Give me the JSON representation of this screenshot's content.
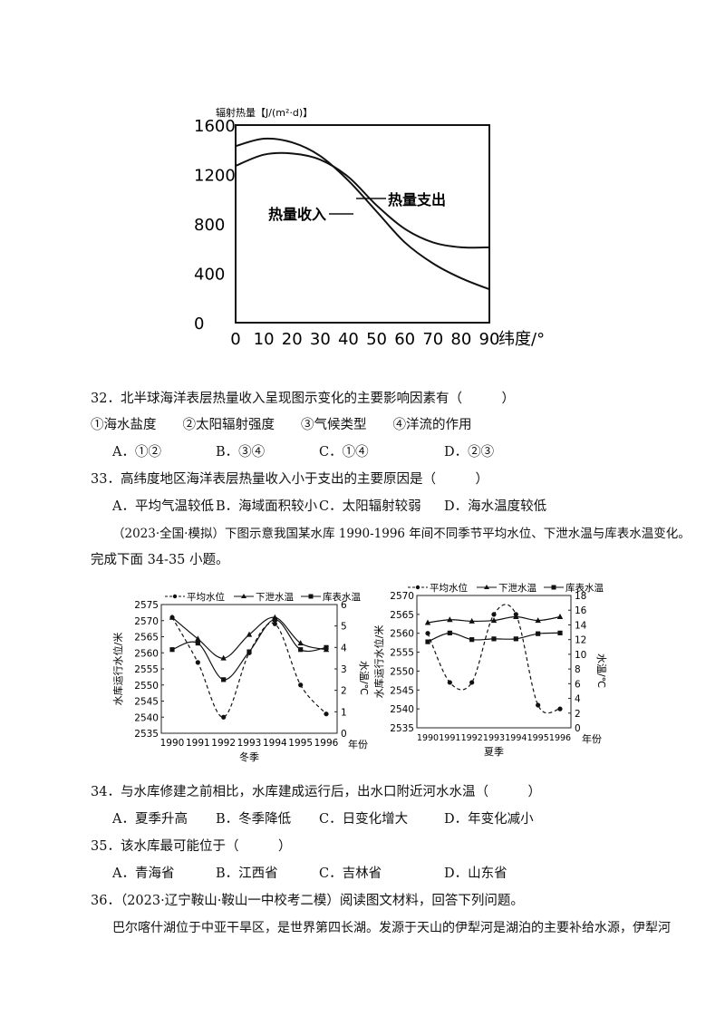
{
  "chart_data": [
    {
      "type": "line",
      "title": "",
      "ylabel": "辐射热量【J/(m²·d)】",
      "xlabel": "纬度/°",
      "x_ticks": [
        "0",
        "10",
        "20",
        "30",
        "40",
        "50",
        "60",
        "70",
        "80",
        "90"
      ],
      "y_ticks": [
        "0",
        "400",
        "800",
        "1200",
        "1600"
      ],
      "xlim": [
        0,
        90
      ],
      "ylim": [
        0,
        1600
      ],
      "series": [
        {
          "name": "热量收入",
          "x": [
            0,
            10,
            20,
            30,
            40,
            50,
            60,
            70,
            80,
            90
          ],
          "y": [
            1430,
            1490,
            1460,
            1350,
            1150,
            900,
            650,
            480,
            360,
            270
          ]
        },
        {
          "name": "热量支出",
          "x": [
            0,
            10,
            20,
            30,
            40,
            50,
            60,
            70,
            80,
            90
          ],
          "y": [
            1270,
            1360,
            1370,
            1320,
            1180,
            950,
            760,
            650,
            610,
            610
          ]
        }
      ]
    },
    {
      "type": "line",
      "caption": "冬季",
      "legend": [
        "平均水位",
        "下泄水温",
        "库表水温"
      ],
      "y_left_label": "水库运行水位/米",
      "y_right_label": "水温/℃",
      "x_label": "年份",
      "categories": [
        "1990",
        "1991",
        "1992",
        "1993",
        "1994",
        "1995",
        "1996"
      ],
      "y_left_ticks": [
        "2535",
        "2540",
        "2545",
        "2550",
        "2555",
        "2560",
        "2565",
        "2570",
        "2575"
      ],
      "y_right_ticks": [
        "0",
        "1",
        "2",
        "3",
        "4",
        "5",
        "6"
      ],
      "y_left_lim": [
        2535,
        2575
      ],
      "y_right_lim": [
        0,
        6
      ],
      "series": [
        {
          "name": "平均水位",
          "axis": "left",
          "values": [
            2571,
            2557,
            2540,
            2560,
            2569,
            2550,
            2541
          ]
        },
        {
          "name": "下泄水温",
          "axis": "right",
          "values": [
            5.4,
            4.4,
            3.5,
            4.6,
            5.4,
            4.2,
            3.9
          ]
        },
        {
          "name": "库表水温",
          "axis": "right",
          "values": [
            3.9,
            4.2,
            2.5,
            3.8,
            5.3,
            3.9,
            4.0
          ]
        }
      ]
    },
    {
      "type": "line",
      "caption": "夏季",
      "legend": [
        "平均水位",
        "下泄水温",
        "库表水温"
      ],
      "y_left_label": "水库运行水位/米",
      "y_right_label": "水温/℃",
      "x_label": "年份",
      "categories": [
        "1990",
        "1991",
        "1992",
        "1993",
        "1994",
        "1995",
        "1996"
      ],
      "y_left_ticks": [
        "2535",
        "2540",
        "2545",
        "2550",
        "2555",
        "2560",
        "2565",
        "2570"
      ],
      "y_right_ticks": [
        "0",
        "2",
        "4",
        "6",
        "8",
        "10",
        "12",
        "14",
        "16",
        "18"
      ],
      "y_left_lim": [
        2535,
        2570
      ],
      "y_right_lim": [
        0,
        18
      ],
      "series": [
        {
          "name": "平均水位",
          "axis": "left",
          "values": [
            2560,
            2547,
            2547,
            2565,
            2565,
            2541,
            2540
          ]
        },
        {
          "name": "下泄水温",
          "axis": "right",
          "values": [
            14.3,
            14.7,
            14.5,
            14.6,
            15.1,
            14.6,
            15.1
          ]
        },
        {
          "name": "库表水温",
          "axis": "right",
          "values": [
            11.7,
            12.9,
            12.0,
            12.1,
            12.1,
            12.8,
            12.9
          ]
        }
      ]
    }
  ],
  "questions": {
    "q32": "32．北半球海洋表层热量收入呈现图示变化的主要影响因素有（　　　）",
    "q32_items": "①海水盐度　　②太阳辐射强度　　③气候类型　　④洋流的作用",
    "q32_opts": [
      "A．①②",
      "B．③④",
      "C．①④",
      "D．②③"
    ],
    "q33": "33．高纬度地区海洋表层热量收入小于支出的主要原因是（　　　）",
    "q33_opts": [
      "A．平均气温较低",
      "B．海域面积较小",
      "C．太阳辐射较弱",
      "D．海水温度较低"
    ],
    "intro_line1": "（2023·全国·模拟）下图示意我国某水库 1990-1996 年间不同季节平均水位、下泄水温与库表水温变化。",
    "intro_line2": "完成下面 34-35 小题。",
    "q34": "34．与水库修建之前相比，水库建成运行后，出水口附近河水水温（　　　）",
    "q34_opts": [
      "A．夏季升高",
      "B．冬季降低",
      "C．日变化增大",
      "D．年变化减小"
    ],
    "q35": "35．该水库最可能位于（　　　）",
    "q35_opts": [
      "A．青海省",
      "B．江西省",
      "C．吉林省",
      "D．山东省"
    ],
    "q36": "36．（2023·辽宁鞍山·鞍山一中校考二模）阅读图文材料，回答下列问题。",
    "q36_para": "巴尔喀什湖位于中亚干旱区，是世界第四长湖。发源于天山的伊犁河是湖泊的主要补给水源，伊犁河"
  }
}
